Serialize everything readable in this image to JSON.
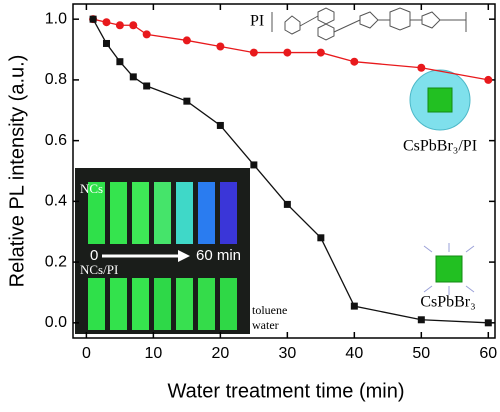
{
  "chart_data": {
    "type": "line",
    "x_label": "Water treatment time (min)",
    "y_label": "Relative PL intensity (a.u.)",
    "x": [
      1,
      3,
      5,
      7,
      9,
      15,
      20,
      25,
      30,
      35,
      40,
      50,
      60
    ],
    "series": [
      {
        "name": "CsPbBr₃/PI",
        "color": "#e8191c",
        "marker": "circle",
        "values": [
          1.0,
          0.99,
          0.98,
          0.98,
          0.95,
          0.93,
          0.91,
          0.89,
          0.89,
          0.89,
          0.86,
          0.84,
          0.8
        ]
      },
      {
        "name": "CsPbBr₃",
        "color": "#111111",
        "marker": "square",
        "values": [
          1.0,
          0.92,
          0.86,
          0.81,
          0.78,
          0.73,
          0.65,
          0.52,
          0.39,
          0.28,
          0.055,
          0.01,
          0.0
        ]
      }
    ],
    "xlim": [
      -2,
      61
    ],
    "xticks": [
      0,
      10,
      20,
      30,
      40,
      50,
      60
    ],
    "ylim": [
      -0.05,
      1.05
    ],
    "yticks": [
      {
        "value": 0,
        "label": "0.0"
      },
      0.2,
      0.4,
      0.6,
      0.8,
      {
        "value": 1,
        "label": "1.0"
      }
    ],
    "annotations": [
      "PI",
      "NCs",
      "0",
      "60 min",
      "NCs/PI",
      "toluene",
      "water"
    ]
  }
}
